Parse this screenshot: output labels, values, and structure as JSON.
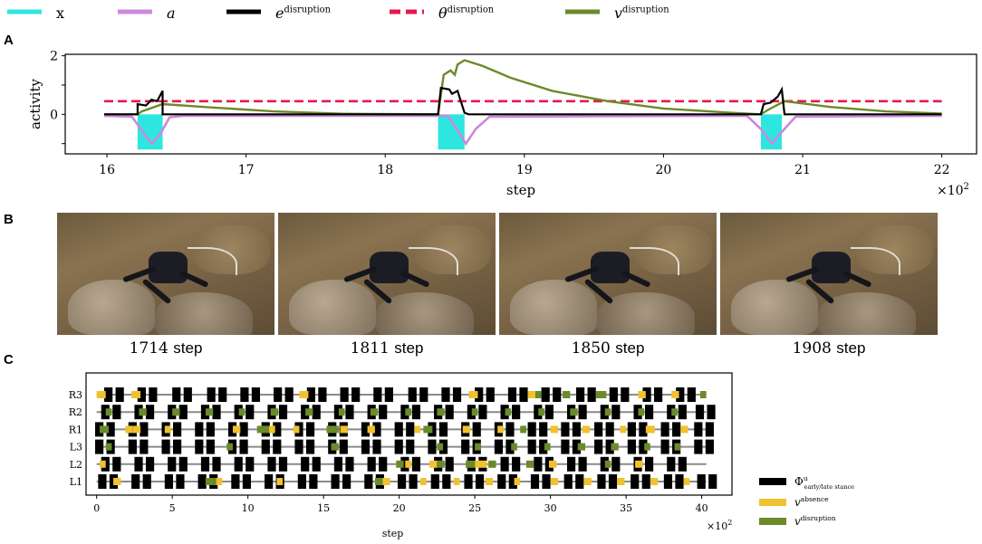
{
  "panels": {
    "a": "A",
    "b": "B",
    "c": "C"
  },
  "legend_top": [
    {
      "label": "x",
      "color": "#2ee6e0",
      "style": "solid"
    },
    {
      "label": "a",
      "color": "#cc88dd",
      "style": "solid"
    },
    {
      "label": "e",
      "sup": "disruption",
      "color": "#000000",
      "style": "solid"
    },
    {
      "label": "θ",
      "sup": "disruption",
      "color": "#e8174f",
      "style": "dashed"
    },
    {
      "label": "v",
      "sup": "disruption",
      "color": "#6b8a2a",
      "style": "solid"
    }
  ],
  "colors": {
    "x": "#2ee6e0",
    "a": "#cc88dd",
    "e": "#000000",
    "theta": "#e8174f",
    "v": "#6b8a2a",
    "phi": "#000000",
    "v_absence": "#f2c12e",
    "v_disruption": "#6b8a2a"
  },
  "chart_data": [
    {
      "type": "line",
      "panel": "A",
      "xlabel": "step",
      "ylabel": "activity",
      "x_multiplier": "×10",
      "x_multiplier_exp": "2",
      "xlim": [
        15.7,
        22.25
      ],
      "ylim": [
        -1.35,
        2.05
      ],
      "xticks": [
        16,
        17,
        18,
        19,
        20,
        21,
        22
      ],
      "yticks": [
        0,
        1,
        2
      ],
      "ytick_labels": [
        "0",
        "",
        "2"
      ],
      "threshold": 0.45,
      "pulses": [
        [
          16.22,
          16.4
        ],
        [
          18.38,
          18.57
        ],
        [
          20.7,
          20.85
        ]
      ],
      "series": {
        "a": [
          [
            15.98,
            -0.05
          ],
          [
            16.18,
            -0.08
          ],
          [
            16.25,
            -0.55
          ],
          [
            16.32,
            -1.0
          ],
          [
            16.38,
            -0.7
          ],
          [
            16.45,
            -0.1
          ],
          [
            16.55,
            -0.05
          ],
          [
            18.45,
            -0.05
          ],
          [
            18.5,
            -0.4
          ],
          [
            18.58,
            -1.0
          ],
          [
            18.65,
            -0.5
          ],
          [
            18.75,
            -0.08
          ],
          [
            20.6,
            -0.05
          ],
          [
            20.7,
            -0.5
          ],
          [
            20.78,
            -1.0
          ],
          [
            20.85,
            -0.6
          ],
          [
            20.95,
            -0.08
          ],
          [
            22.0,
            -0.05
          ]
        ],
        "e": [
          [
            15.98,
            0.0
          ],
          [
            16.22,
            0.0
          ],
          [
            16.22,
            0.35
          ],
          [
            16.28,
            0.3
          ],
          [
            16.32,
            0.5
          ],
          [
            16.36,
            0.45
          ],
          [
            16.4,
            0.8
          ],
          [
            16.4,
            0.0
          ],
          [
            18.38,
            0.0
          ],
          [
            18.4,
            0.9
          ],
          [
            18.46,
            0.85
          ],
          [
            18.48,
            0.7
          ],
          [
            18.52,
            0.8
          ],
          [
            18.57,
            0.05
          ],
          [
            18.6,
            0.0
          ],
          [
            20.7,
            0.0
          ],
          [
            20.72,
            0.35
          ],
          [
            20.77,
            0.4
          ],
          [
            20.82,
            0.6
          ],
          [
            20.85,
            0.85
          ],
          [
            20.87,
            0.0
          ],
          [
            22.0,
            0.0
          ]
        ],
        "v": [
          [
            15.98,
            0.0
          ],
          [
            16.22,
            0.0
          ],
          [
            16.25,
            0.1
          ],
          [
            16.4,
            0.35
          ],
          [
            16.7,
            0.25
          ],
          [
            17.2,
            0.1
          ],
          [
            17.7,
            0.02
          ],
          [
            18.38,
            0.0
          ],
          [
            18.42,
            1.35
          ],
          [
            18.47,
            1.5
          ],
          [
            18.5,
            1.35
          ],
          [
            18.52,
            1.7
          ],
          [
            18.57,
            1.85
          ],
          [
            18.7,
            1.65
          ],
          [
            18.9,
            1.25
          ],
          [
            19.2,
            0.8
          ],
          [
            19.6,
            0.45
          ],
          [
            20.0,
            0.2
          ],
          [
            20.5,
            0.05
          ],
          [
            20.7,
            0.0
          ],
          [
            20.75,
            0.15
          ],
          [
            20.87,
            0.45
          ],
          [
            21.2,
            0.25
          ],
          [
            21.6,
            0.1
          ],
          [
            22.0,
            0.03
          ]
        ]
      }
    },
    {
      "type": "gantt",
      "panel": "C",
      "xlabel": "step",
      "x_multiplier": "×10",
      "x_multiplier_exp": "2",
      "xlim": [
        -0.7,
        42.0
      ],
      "xticks": [
        0,
        5,
        10,
        15,
        20,
        25,
        30,
        35,
        40
      ],
      "rows": [
        "R3",
        "R2",
        "R1",
        "L3",
        "L2",
        "L1"
      ],
      "legend": [
        {
          "label": "Φ",
          "sup": "u",
          "sub": "early/late stance",
          "color": "#000000"
        },
        {
          "label": "v",
          "sup": "absence",
          "color": "#f2c12e"
        },
        {
          "label": "v",
          "sup": "disruption",
          "color": "#6b8a2a"
        }
      ],
      "line_end": 40.3,
      "black_pairs": {
        "R3": [
          0.5,
          2.7,
          5.0,
          7.3,
          9.5,
          11.7,
          13.9,
          16.1,
          18.3,
          20.6,
          22.8,
          25.0,
          27.2,
          29.4,
          31.7,
          33.9,
          36.1,
          38.3
        ],
        "R2": [
          0.3,
          2.5,
          4.7,
          6.9,
          9.1,
          11.3,
          13.5,
          15.7,
          17.9,
          20.1,
          22.3,
          24.5,
          26.7,
          28.9,
          31.1,
          33.3,
          35.5,
          37.7,
          39.6
        ],
        "R1": [
          -0.1,
          2.1,
          4.3,
          6.5,
          8.7,
          10.9,
          13.1,
          15.3,
          17.5,
          19.7,
          21.9,
          24.1,
          26.3,
          28.5,
          30.7,
          32.9,
          35.1,
          37.3,
          39.5
        ],
        "L3": [
          -0.1,
          2.1,
          4.3,
          6.5,
          8.7,
          10.9,
          13.1,
          15.3,
          17.5,
          19.7,
          21.9,
          24.1,
          26.3,
          28.5,
          30.7,
          32.9,
          35.1,
          37.3,
          39.5
        ],
        "L2": [
          0.3,
          2.5,
          4.7,
          6.9,
          9.1,
          11.3,
          13.5,
          15.7,
          17.9,
          20.1,
          22.3,
          24.5,
          26.7,
          28.9,
          31.1,
          33.3,
          35.5,
          37.7
        ],
        "L1": [
          0.1,
          2.3,
          4.5,
          6.7,
          8.9,
          11.1,
          13.3,
          15.5,
          17.7,
          19.9,
          22.1,
          24.3,
          26.5,
          28.7,
          30.9,
          33.1,
          35.3,
          37.5,
          39.7
        ]
      },
      "segments": {
        "R3": [
          [
            0.0,
            0.6,
            "a"
          ],
          [
            2.3,
            2.9,
            "a"
          ],
          [
            13.4,
            14.0,
            "a"
          ],
          [
            24.6,
            25.2,
            "a"
          ],
          [
            28.5,
            29.0,
            "a"
          ],
          [
            29.0,
            29.4,
            "d"
          ],
          [
            30.8,
            31.3,
            "d"
          ],
          [
            33.0,
            33.7,
            "d"
          ],
          [
            35.8,
            36.3,
            "a"
          ],
          [
            38.0,
            38.5,
            "a"
          ],
          [
            39.9,
            40.3,
            "d"
          ]
        ],
        "R2": [
          [
            0.6,
            1.0,
            "d"
          ],
          [
            2.8,
            3.3,
            "d"
          ],
          [
            5.0,
            5.5,
            "d"
          ],
          [
            7.2,
            7.7,
            "d"
          ],
          [
            9.4,
            9.8,
            "d"
          ],
          [
            11.5,
            12.0,
            "d"
          ],
          [
            13.8,
            14.3,
            "d"
          ],
          [
            16.0,
            16.4,
            "d"
          ],
          [
            18.1,
            18.6,
            "d"
          ],
          [
            20.4,
            20.8,
            "d"
          ],
          [
            22.5,
            23.0,
            "d"
          ],
          [
            24.8,
            25.2,
            "d"
          ],
          [
            27.0,
            27.4,
            "d"
          ],
          [
            29.2,
            29.6,
            "d"
          ],
          [
            31.3,
            31.8,
            "d"
          ],
          [
            33.6,
            34.0,
            "d"
          ],
          [
            35.8,
            36.2,
            "d"
          ],
          [
            38.0,
            38.4,
            "d"
          ]
        ],
        "R1": [
          [
            0.2,
            0.8,
            "d"
          ],
          [
            1.9,
            2.4,
            "a"
          ],
          [
            2.4,
            2.9,
            "a"
          ],
          [
            4.5,
            4.9,
            "a"
          ],
          [
            9.0,
            9.5,
            "a"
          ],
          [
            10.6,
            11.4,
            "d"
          ],
          [
            11.4,
            11.8,
            "a"
          ],
          [
            13.0,
            13.4,
            "a"
          ],
          [
            15.2,
            16.0,
            "d"
          ],
          [
            16.1,
            16.6,
            "a"
          ],
          [
            17.9,
            18.4,
            "a"
          ],
          [
            21.0,
            21.4,
            "a"
          ],
          [
            21.6,
            22.2,
            "d"
          ],
          [
            24.2,
            24.7,
            "a"
          ],
          [
            26.5,
            26.9,
            "a"
          ],
          [
            28.0,
            28.4,
            "d"
          ],
          [
            30.0,
            30.5,
            "a"
          ],
          [
            32.1,
            32.6,
            "a"
          ],
          [
            34.6,
            35.0,
            "a"
          ],
          [
            36.3,
            36.9,
            "a"
          ],
          [
            38.6,
            39.1,
            "a"
          ]
        ],
        "L3": [
          [
            0.6,
            1.0,
            "d"
          ],
          [
            8.6,
            9.0,
            "d"
          ],
          [
            15.5,
            16.0,
            "d"
          ],
          [
            22.5,
            22.9,
            "d"
          ],
          [
            25.0,
            25.4,
            "d"
          ],
          [
            27.4,
            27.8,
            "d"
          ],
          [
            29.6,
            30.0,
            "d"
          ],
          [
            31.8,
            32.3,
            "d"
          ],
          [
            34.0,
            34.5,
            "d"
          ],
          [
            36.2,
            36.6,
            "d"
          ],
          [
            38.2,
            38.6,
            "d"
          ]
        ],
        "L2": [
          [
            0.2,
            0.6,
            "a"
          ],
          [
            19.8,
            20.3,
            "d"
          ],
          [
            20.4,
            20.8,
            "a"
          ],
          [
            22.0,
            22.5,
            "a"
          ],
          [
            22.5,
            23.0,
            "d"
          ],
          [
            24.4,
            25.0,
            "d"
          ],
          [
            25.0,
            25.8,
            "a"
          ],
          [
            25.9,
            26.4,
            "d"
          ],
          [
            28.4,
            28.9,
            "d"
          ],
          [
            29.9,
            30.4,
            "a"
          ],
          [
            33.6,
            34.0,
            "d"
          ],
          [
            35.6,
            36.1,
            "a"
          ]
        ],
        "L1": [
          [
            1.1,
            1.6,
            "a"
          ],
          [
            7.2,
            7.9,
            "d"
          ],
          [
            7.9,
            8.3,
            "a"
          ],
          [
            11.9,
            12.3,
            "a"
          ],
          [
            18.4,
            18.9,
            "d"
          ],
          [
            18.9,
            19.4,
            "a"
          ],
          [
            21.4,
            21.8,
            "a"
          ],
          [
            23.6,
            24.0,
            "a"
          ],
          [
            25.7,
            26.2,
            "a"
          ],
          [
            27.6,
            28.0,
            "a"
          ],
          [
            30.0,
            30.5,
            "a"
          ],
          [
            32.2,
            32.7,
            "a"
          ],
          [
            34.4,
            34.9,
            "a"
          ],
          [
            36.6,
            37.1,
            "a"
          ],
          [
            38.8,
            39.2,
            "a"
          ]
        ]
      }
    }
  ],
  "photos": [
    {
      "caption_num": "1714",
      "caption_unit": "step"
    },
    {
      "caption_num": "1811",
      "caption_unit": "step"
    },
    {
      "caption_num": "1850",
      "caption_unit": "step"
    },
    {
      "caption_num": "1908",
      "caption_unit": "step"
    }
  ]
}
